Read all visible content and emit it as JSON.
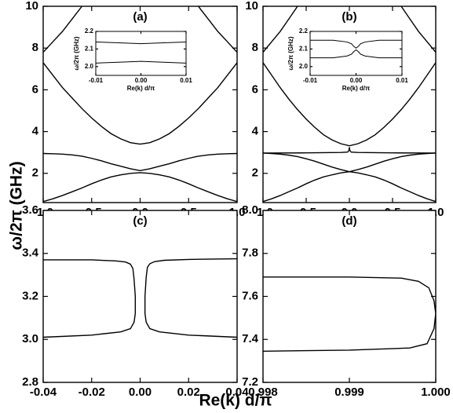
{
  "figure": {
    "ylabel": "ω/2π (GHz)",
    "xlabel": "Re(k) d/π"
  },
  "chart_data": [
    {
      "type": "line",
      "title": "(a)",
      "xlim": [
        -1,
        1
      ],
      "ylim": [
        0.6,
        10
      ],
      "xticks": [
        {
          "value": -1,
          "label": "-1.0"
        },
        {
          "value": -0.5,
          "label": "-0.5"
        },
        {
          "value": 0,
          "label": "0.0"
        },
        {
          "value": 0.5,
          "label": "0.5"
        },
        {
          "value": 1,
          "label": "1.0"
        }
      ],
      "yticks": [
        2,
        4,
        6,
        8,
        10
      ],
      "series": [
        {
          "color": "#000000",
          "x": [
            -1,
            -0.9,
            -0.8,
            -0.7,
            -0.6,
            -0.5,
            -0.4,
            -0.3,
            -0.2,
            -0.1,
            0,
            0.1,
            0.2,
            0.3,
            0.4,
            0.5,
            0.6,
            0.7,
            0.8,
            0.9,
            1
          ],
          "values": [
            2.95,
            2.94,
            2.92,
            2.88,
            2.82,
            2.72,
            2.6,
            2.46,
            2.34,
            2.22,
            2.13,
            2.22,
            2.34,
            2.46,
            2.6,
            2.72,
            2.82,
            2.88,
            2.92,
            2.94,
            2.95
          ]
        },
        {
          "color": "#000000",
          "x": [
            -1,
            -0.9,
            -0.8,
            -0.7,
            -0.6,
            -0.5,
            -0.4,
            -0.3,
            -0.2,
            -0.1,
            0,
            0.1,
            0.2,
            0.3,
            0.4,
            0.5,
            0.6,
            0.7,
            0.8,
            0.9,
            1
          ],
          "values": [
            0.65,
            0.78,
            0.94,
            1.12,
            1.3,
            1.5,
            1.68,
            1.83,
            1.93,
            2.0,
            2.03,
            2.0,
            1.93,
            1.83,
            1.68,
            1.5,
            1.3,
            1.12,
            0.94,
            0.78,
            0.65
          ]
        },
        {
          "color": "#000000",
          "x": [
            -1,
            -0.9,
            -0.8,
            -0.7,
            -0.6,
            -0.5,
            -0.4,
            -0.3,
            -0.2,
            -0.1,
            0,
            0.1,
            0.2,
            0.3,
            0.4,
            0.5,
            0.6,
            0.7,
            0.8,
            0.9,
            1
          ],
          "values": [
            7.3,
            6.7,
            6.1,
            5.6,
            5.1,
            4.65,
            4.25,
            3.9,
            3.65,
            3.47,
            3.4,
            3.47,
            3.65,
            3.9,
            4.25,
            4.65,
            5.1,
            5.6,
            6.1,
            6.7,
            7.3
          ]
        },
        {
          "color": "#000000",
          "x": [
            -1,
            -0.9,
            -0.8,
            -0.7,
            -0.6
          ],
          "values": [
            7.8,
            8.3,
            8.8,
            9.4,
            10
          ]
        },
        {
          "color": "#000000",
          "x": [
            1,
            0.9,
            0.8,
            0.7,
            0.6
          ],
          "values": [
            7.8,
            8.3,
            8.8,
            9.4,
            10
          ]
        }
      ]
    },
    {
      "type": "line",
      "xlabel": "Re(k) d/π",
      "ylabel": "ω/2π (GHz)",
      "xlim": [
        -0.01,
        0.01
      ],
      "ylim": [
        1.95,
        2.2
      ],
      "xticks": [
        -0.01,
        {
          "value": 0,
          "label": "0.00"
        },
        0.01
      ],
      "yticks": [
        {
          "value": 2,
          "label": "2.0"
        },
        2.1,
        2.2
      ],
      "series": [
        {
          "color": "#000000",
          "x": [
            -0.01,
            -0.005,
            0,
            0.005,
            0.01
          ],
          "values": [
            2.14,
            2.135,
            2.13,
            2.135,
            2.14
          ]
        },
        {
          "color": "#000000",
          "x": [
            -0.01,
            -0.005,
            0,
            0.005,
            0.01
          ],
          "values": [
            2.02,
            2.025,
            2.03,
            2.025,
            2.02
          ]
        }
      ]
    },
    {
      "type": "line",
      "title": "(b)",
      "xlim": [
        -1,
        1
      ],
      "ylim": [
        0.6,
        10
      ],
      "xticks": [
        {
          "value": -1,
          "label": "-1.0"
        },
        {
          "value": -0.5,
          "label": "-0.5"
        },
        {
          "value": 0,
          "label": "0.0"
        },
        {
          "value": 0.5,
          "label": "0.5"
        },
        {
          "value": 1,
          "label": "1.0"
        }
      ],
      "yticks": [
        2,
        4,
        6,
        8,
        10
      ],
      "series": [
        {
          "color": "#000000",
          "x": [
            -1,
            -0.5,
            -0.1,
            -0.02,
            -0.005,
            0,
            0.005,
            0.02,
            0.1,
            0.5,
            1
          ],
          "values": [
            2.97,
            2.98,
            3.0,
            3.02,
            3.1,
            3.25,
            3.1,
            3.02,
            3.0,
            2.98,
            2.97
          ]
        },
        {
          "color": "#000000",
          "x": [
            -1,
            -0.9,
            -0.8,
            -0.7,
            -0.6,
            -0.5,
            -0.4,
            -0.3,
            -0.2,
            -0.1,
            0,
            0.1,
            0.2,
            0.3,
            0.4,
            0.5,
            0.6,
            0.7,
            0.8,
            0.9,
            1
          ],
          "values": [
            0.65,
            0.78,
            0.94,
            1.12,
            1.3,
            1.5,
            1.68,
            1.83,
            1.93,
            2.02,
            2.08,
            2.18,
            2.3,
            2.44,
            2.58,
            2.7,
            2.8,
            2.87,
            2.92,
            2.95,
            2.97
          ]
        },
        {
          "color": "#000000",
          "x": [
            1,
            0.9,
            0.8,
            0.7,
            0.6,
            0.5,
            0.4,
            0.3,
            0.2,
            0.1,
            0,
            -0.1,
            -0.2,
            -0.3,
            -0.4,
            -0.5,
            -0.6,
            -0.7,
            -0.8,
            -0.9,
            -1
          ],
          "values": [
            0.65,
            0.78,
            0.94,
            1.12,
            1.3,
            1.5,
            1.68,
            1.83,
            1.93,
            2.02,
            2.08,
            2.18,
            2.3,
            2.44,
            2.58,
            2.7,
            2.8,
            2.87,
            2.92,
            2.95,
            2.97
          ]
        },
        {
          "color": "#000000",
          "x": [
            -1,
            -0.9,
            -0.8,
            -0.7,
            -0.6,
            -0.5,
            -0.4,
            -0.3,
            -0.2,
            -0.1,
            0,
            0.1,
            0.2,
            0.3,
            0.4,
            0.5,
            0.6,
            0.7,
            0.8,
            0.9,
            1
          ],
          "values": [
            7.3,
            6.7,
            6.1,
            5.55,
            5.05,
            4.6,
            4.2,
            3.85,
            3.6,
            3.42,
            3.32,
            3.42,
            3.6,
            3.85,
            4.2,
            4.6,
            5.05,
            5.55,
            6.1,
            6.7,
            7.3
          ]
        },
        {
          "color": "#000000",
          "x": [
            -1,
            -0.9,
            -0.8,
            -0.7,
            -0.6
          ],
          "values": [
            7.8,
            8.3,
            8.8,
            9.4,
            10
          ]
        },
        {
          "color": "#000000",
          "x": [
            1,
            0.9,
            0.8,
            0.7,
            0.6
          ],
          "values": [
            7.8,
            8.3,
            8.8,
            9.4,
            10
          ]
        }
      ]
    },
    {
      "type": "line",
      "xlabel": "Re(k) d/π",
      "ylabel": "ω/2π (GHz)",
      "xlim": [
        -0.01,
        0.01
      ],
      "ylim": [
        1.95,
        2.2
      ],
      "xticks": [
        -0.01,
        {
          "value": 0,
          "label": "0.00"
        },
        0.01
      ],
      "yticks": [
        {
          "value": 2,
          "label": "2.0"
        },
        2.1,
        2.2
      ],
      "series": [
        {
          "color": "#000000",
          "x": [
            -0.01,
            -0.005,
            -0.002,
            -0.001,
            -0.0005,
            0,
            0.0005,
            0.001,
            0.002,
            0.005,
            0.01
          ],
          "values": [
            2.15,
            2.15,
            2.14,
            2.13,
            2.115,
            2.105,
            2.115,
            2.13,
            2.14,
            2.15,
            2.15
          ]
        },
        {
          "color": "#000000",
          "x": [
            -0.01,
            -0.005,
            -0.002,
            -0.001,
            -0.0005,
            0,
            0.0005,
            0.001,
            0.002,
            0.005,
            0.01
          ],
          "values": [
            2.05,
            2.05,
            2.06,
            2.07,
            2.085,
            2.095,
            2.085,
            2.07,
            2.06,
            2.05,
            2.05
          ]
        }
      ]
    },
    {
      "type": "line",
      "title": "(c)",
      "xlim": [
        -0.04,
        0.04
      ],
      "ylim": [
        2.8,
        3.6
      ],
      "xticks": [
        -0.04,
        -0.02,
        {
          "value": 0,
          "label": "0.00"
        },
        0.02,
        0.04
      ],
      "yticks": [
        2.8,
        {
          "value": 3,
          "label": "3.0"
        },
        3.2,
        3.4,
        3.6
      ],
      "series": [
        {
          "color": "#000000",
          "x": [
            -0.04,
            -0.02,
            -0.01,
            -0.006,
            -0.004,
            -0.003,
            -0.0025,
            -0.002,
            -0.002,
            -0.0025,
            -0.004,
            -0.008,
            -0.02,
            -0.04
          ],
          "values": [
            3.37,
            3.37,
            3.365,
            3.36,
            3.35,
            3.33,
            3.28,
            3.2,
            3.12,
            3.08,
            3.05,
            3.035,
            3.02,
            3.01
          ]
        },
        {
          "color": "#000000",
          "x": [
            0.04,
            0.02,
            0.01,
            0.006,
            0.004,
            0.003,
            0.0025,
            0.002,
            0.002,
            0.0025,
            0.004,
            0.008,
            0.02,
            0.04
          ],
          "values": [
            3.375,
            3.372,
            3.368,
            3.362,
            3.352,
            3.335,
            3.29,
            3.2,
            3.12,
            3.08,
            3.05,
            3.035,
            3.02,
            3.01
          ]
        }
      ]
    },
    {
      "type": "line",
      "title": "(d)",
      "xlim": [
        0.998,
        1.0
      ],
      "ylim": [
        7.2,
        8
      ],
      "xticks": [
        0.998,
        0.999,
        {
          "value": 1,
          "label": "1.000"
        }
      ],
      "yticks": [
        7.2,
        7.4,
        7.6,
        7.8,
        {
          "value": 8,
          "label": "8.0"
        }
      ],
      "series": [
        {
          "color": "#000000",
          "x": [
            0.998,
            0.999,
            0.9996,
            0.9998,
            0.99992,
            0.99998,
            1.0,
            0.99998,
            0.9999,
            0.9997,
            0.999,
            0.998
          ],
          "values": [
            7.69,
            7.69,
            7.685,
            7.67,
            7.64,
            7.58,
            7.52,
            7.45,
            7.38,
            7.36,
            7.35,
            7.345
          ]
        }
      ]
    }
  ]
}
